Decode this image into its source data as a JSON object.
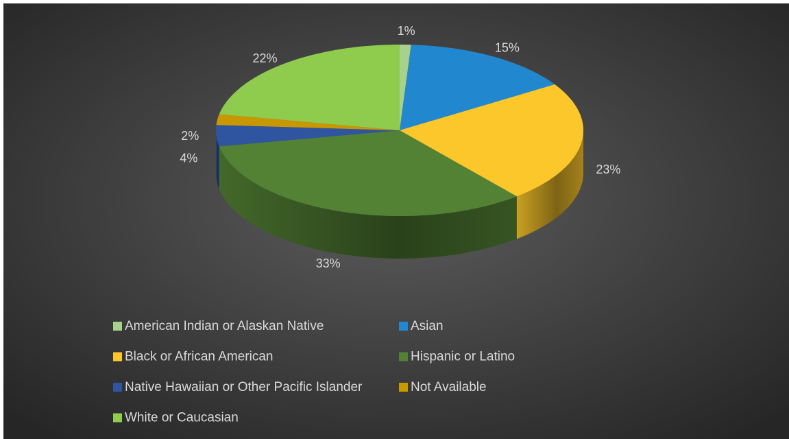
{
  "chart_data": {
    "type": "pie",
    "categories": [
      "American Indian or Alaskan Native",
      "Asian",
      "Black or African American",
      "Hispanic or Latino",
      "Native Hawaiian or Other Pacific Islander",
      "Not Available",
      "White or Caucasian"
    ],
    "values": [
      1,
      15,
      23,
      33,
      4,
      2,
      22
    ],
    "value_labels": [
      "1%",
      "15%",
      "23%",
      "33%",
      "4%",
      "2%",
      "22%"
    ],
    "colors": [
      "#a9d18e",
      "#2188d0",
      "#fcc72a",
      "#548235",
      "#2f55a0",
      "#c99700",
      "#8fcb4c"
    ],
    "legend": "bottom"
  }
}
